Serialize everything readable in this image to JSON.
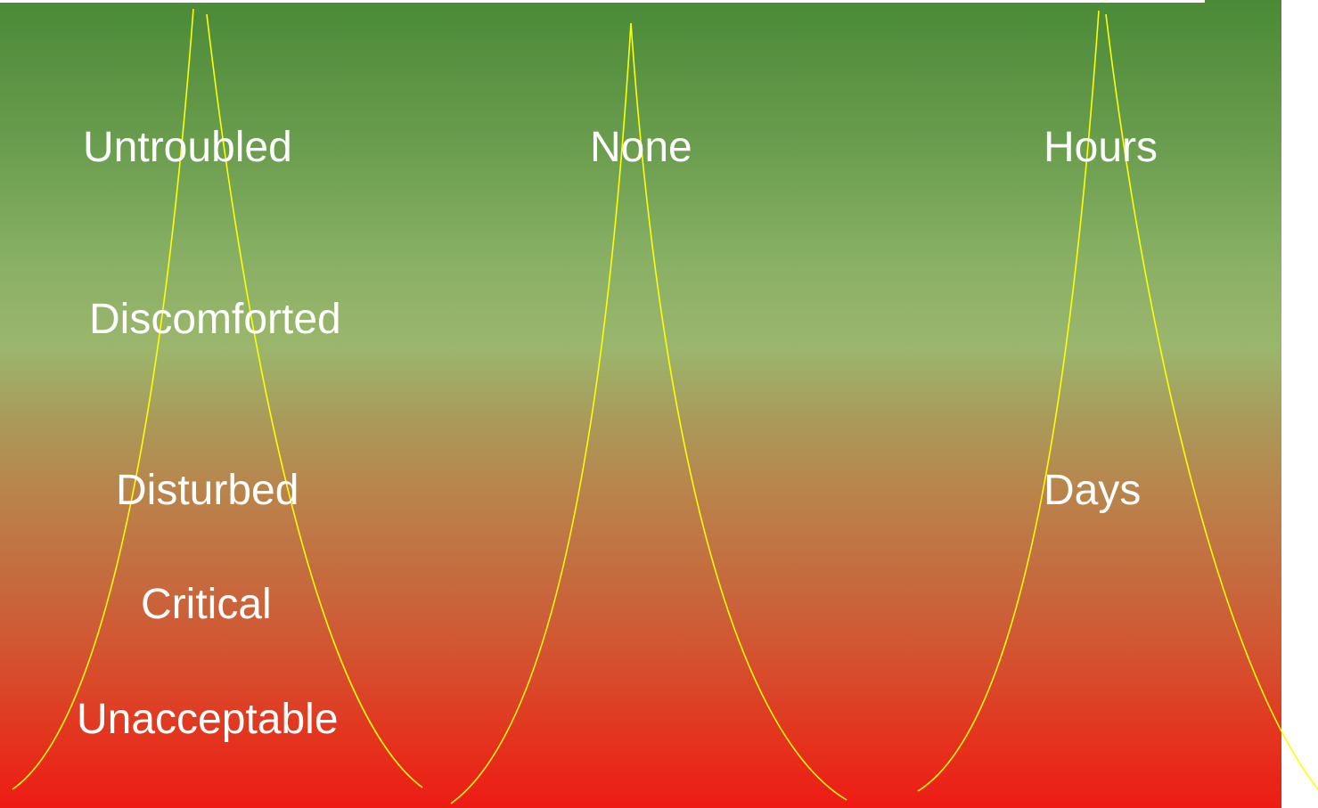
{
  "columns": [
    {
      "labels": {
        "untroubled": "Untroubled",
        "discomforted": "Discomforted",
        "disturbed": "Disturbed",
        "critical": "Critical",
        "unacceptable": "Unacceptable"
      }
    },
    {
      "labels": {
        "none": "None"
      }
    },
    {
      "labels": {
        "hours": "Hours",
        "days": "Days"
      }
    }
  ],
  "colors": {
    "gradient_top": "#4a8a37",
    "gradient_mid": "#9bb66d",
    "gradient_bottom": "#ee1b14",
    "curve_stroke": "#ffff00",
    "label_text": "#ffffff"
  }
}
